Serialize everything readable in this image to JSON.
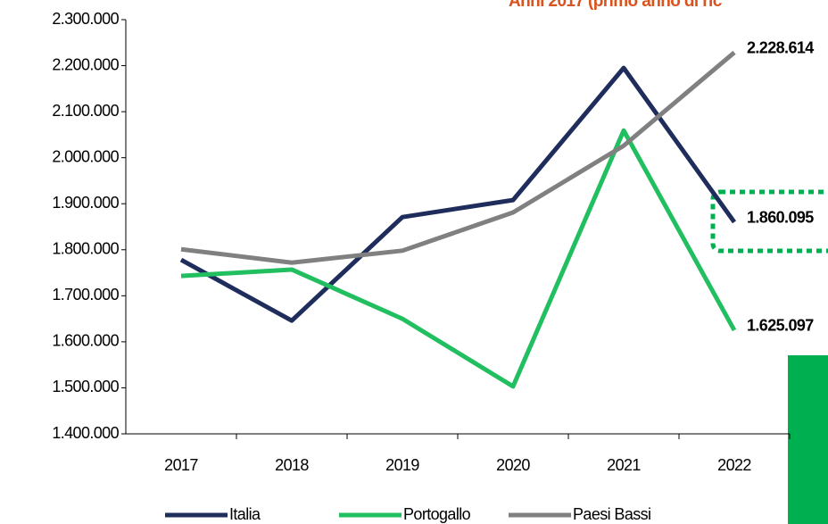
{
  "chart_data": {
    "type": "line",
    "title": "Anni 2017 (primo anno di ric",
    "categories": [
      "2017",
      "2018",
      "2019",
      "2020",
      "2021",
      "2022"
    ],
    "series": [
      {
        "name": "Italia",
        "color": "#1f2d5c",
        "values": [
          1778000,
          1646000,
          1871000,
          1908000,
          2195000,
          1860095
        ],
        "value_labels": [
          null,
          null,
          null,
          null,
          null,
          "1.860.095"
        ]
      },
      {
        "name": "Portogallo",
        "color": "#22bf60",
        "values": [
          1743000,
          1757000,
          1650000,
          1503000,
          2059000,
          1625097
        ],
        "value_labels": [
          null,
          null,
          null,
          null,
          null,
          "1.625.097"
        ]
      },
      {
        "name": "Paesi Bassi",
        "color": "#808080",
        "values": [
          1801000,
          1772000,
          1798000,
          1881000,
          2026000,
          2228614
        ],
        "value_labels": [
          null,
          null,
          null,
          null,
          null,
          "2.228.614"
        ]
      }
    ],
    "ylim": [
      1400000,
      2300000
    ],
    "yticks": [
      {
        "value": 1400000,
        "label": "1.400.000"
      },
      {
        "value": 1500000,
        "label": "1.500.000"
      },
      {
        "value": 1600000,
        "label": "1.600.000"
      },
      {
        "value": 1700000,
        "label": "1.700.000"
      },
      {
        "value": 1800000,
        "label": "1.800.000"
      },
      {
        "value": 1900000,
        "label": "1.900.000"
      },
      {
        "value": 2000000,
        "label": "2.000.000"
      },
      {
        "value": 2100000,
        "label": "2.100.000"
      },
      {
        "value": 2200000,
        "label": "2.200.000"
      },
      {
        "value": 2300000,
        "label": "2.300.000"
      }
    ],
    "grid": false
  }
}
